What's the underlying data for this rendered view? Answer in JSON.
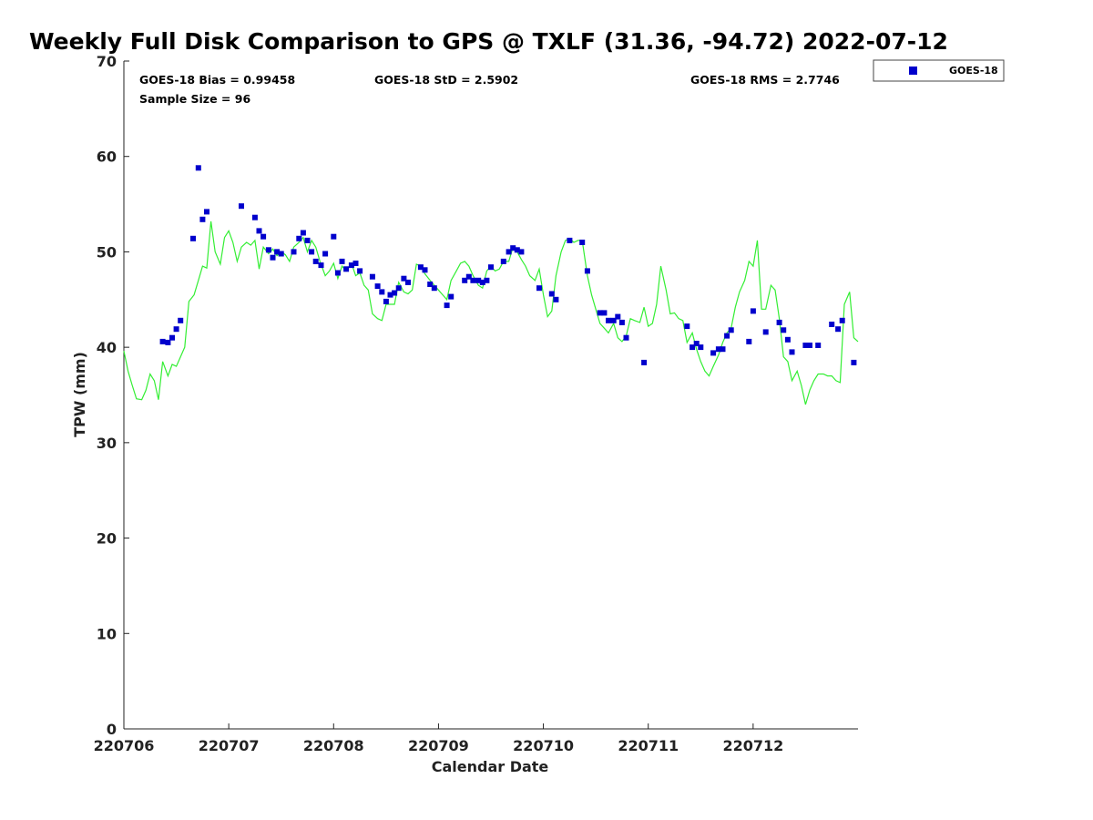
{
  "chart_data": {
    "type": "scatter",
    "title": "Weekly Full Disk Comparison to GPS @ TXLF (31.36, -94.72) 2022-07-12",
    "xlabel": "Calendar Date",
    "ylabel": "TPW (mm)",
    "xlim": [
      220706,
      220713
    ],
    "ylim": [
      0,
      70
    ],
    "x_ticks": [
      220706,
      220707,
      220708,
      220709,
      220710,
      220711,
      220712
    ],
    "x_tick_labels": [
      "220706",
      "220707",
      "220708",
      "220709",
      "220710",
      "220711",
      "220712"
    ],
    "y_ticks": [
      0,
      10,
      20,
      30,
      40,
      50,
      60,
      70
    ],
    "y_tick_labels": [
      "0",
      "10",
      "20",
      "30",
      "40",
      "50",
      "60",
      "70"
    ],
    "grid": false,
    "legend": {
      "placement": "outside-top-right",
      "entries": [
        "GOES-18"
      ]
    },
    "stats": {
      "bias": "GOES-18 Bias = 0.99458",
      "std": "GOES-18 StD = 2.5902",
      "rms": "GOES-18 RMS = 2.7746",
      "sample": "Sample Size = 96"
    },
    "series": [
      {
        "name": "GOES-18",
        "marker": "square",
        "color": "#0000cc",
        "points": [
          [
            220706.37,
            40.6
          ],
          [
            220706.42,
            40.5
          ],
          [
            220706.46,
            41.0
          ],
          [
            220706.5,
            41.9
          ],
          [
            220706.54,
            42.8
          ],
          [
            220706.66,
            51.4
          ],
          [
            220706.71,
            58.8
          ],
          [
            220706.75,
            53.4
          ],
          [
            220706.79,
            54.2
          ],
          [
            220707.12,
            54.8
          ],
          [
            220707.25,
            53.6
          ],
          [
            220707.29,
            52.2
          ],
          [
            220707.33,
            51.6
          ],
          [
            220707.38,
            50.2
          ],
          [
            220707.42,
            49.4
          ],
          [
            220707.46,
            50.0
          ],
          [
            220707.5,
            49.8
          ],
          [
            220707.62,
            50.0
          ],
          [
            220707.67,
            51.4
          ],
          [
            220707.71,
            52.0
          ],
          [
            220707.75,
            51.2
          ],
          [
            220707.79,
            50.0
          ],
          [
            220707.83,
            49.0
          ],
          [
            220707.88,
            48.6
          ],
          [
            220707.92,
            49.8
          ],
          [
            220708.0,
            51.6
          ],
          [
            220708.04,
            47.8
          ],
          [
            220708.08,
            49.0
          ],
          [
            220708.12,
            48.2
          ],
          [
            220708.17,
            48.6
          ],
          [
            220708.21,
            48.8
          ],
          [
            220708.25,
            48.0
          ],
          [
            220708.37,
            47.4
          ],
          [
            220708.42,
            46.4
          ],
          [
            220708.46,
            45.8
          ],
          [
            220708.5,
            44.8
          ],
          [
            220708.54,
            45.5
          ],
          [
            220708.58,
            45.7
          ],
          [
            220708.62,
            46.2
          ],
          [
            220708.67,
            47.2
          ],
          [
            220708.71,
            46.8
          ],
          [
            220708.83,
            48.4
          ],
          [
            220708.87,
            48.1
          ],
          [
            220708.92,
            46.6
          ],
          [
            220708.96,
            46.2
          ],
          [
            220709.08,
            44.4
          ],
          [
            220709.12,
            45.3
          ],
          [
            220709.25,
            47.0
          ],
          [
            220709.29,
            47.4
          ],
          [
            220709.33,
            47.0
          ],
          [
            220709.38,
            47.0
          ],
          [
            220709.42,
            46.8
          ],
          [
            220709.46,
            47.0
          ],
          [
            220709.5,
            48.4
          ],
          [
            220709.62,
            49.0
          ],
          [
            220709.67,
            50.0
          ],
          [
            220709.71,
            50.4
          ],
          [
            220709.75,
            50.2
          ],
          [
            220709.79,
            50.0
          ],
          [
            220709.96,
            46.2
          ],
          [
            220710.08,
            45.6
          ],
          [
            220710.12,
            45.0
          ],
          [
            220710.25,
            51.2
          ],
          [
            220710.37,
            51.0
          ],
          [
            220710.42,
            48.0
          ],
          [
            220710.54,
            43.6
          ],
          [
            220710.58,
            43.6
          ],
          [
            220710.62,
            42.8
          ],
          [
            220710.67,
            42.8
          ],
          [
            220710.71,
            43.2
          ],
          [
            220710.75,
            42.6
          ],
          [
            220710.79,
            41.0
          ],
          [
            220710.96,
            38.4
          ],
          [
            220711.37,
            42.2
          ],
          [
            220711.42,
            40.0
          ],
          [
            220711.46,
            40.4
          ],
          [
            220711.5,
            40.0
          ],
          [
            220711.62,
            39.4
          ],
          [
            220711.67,
            39.8
          ],
          [
            220711.71,
            39.8
          ],
          [
            220711.75,
            41.2
          ],
          [
            220711.79,
            41.8
          ],
          [
            220711.96,
            40.6
          ],
          [
            220712.0,
            43.8
          ],
          [
            220712.12,
            41.6
          ],
          [
            220712.25,
            42.6
          ],
          [
            220712.29,
            41.8
          ],
          [
            220712.33,
            40.8
          ],
          [
            220712.37,
            39.5
          ],
          [
            220712.5,
            40.2
          ],
          [
            220712.54,
            40.2
          ],
          [
            220712.62,
            40.2
          ],
          [
            220712.75,
            42.4
          ],
          [
            220712.81,
            41.9
          ],
          [
            220712.85,
            42.8
          ],
          [
            220712.96,
            38.4
          ]
        ]
      },
      {
        "name": "",
        "marker": "line",
        "color": "#33ee33",
        "points": [
          [
            220706.0,
            39.6
          ],
          [
            220706.04,
            37.5
          ],
          [
            220706.08,
            36.0
          ],
          [
            220706.12,
            34.6
          ],
          [
            220706.17,
            34.5
          ],
          [
            220706.21,
            35.5
          ],
          [
            220706.25,
            37.2
          ],
          [
            220706.29,
            36.5
          ],
          [
            220706.33,
            34.5
          ],
          [
            220706.37,
            38.5
          ],
          [
            220706.42,
            37.0
          ],
          [
            220706.46,
            38.2
          ],
          [
            220706.5,
            38.0
          ],
          [
            220706.54,
            39.0
          ],
          [
            220706.58,
            40.0
          ],
          [
            220706.62,
            44.8
          ],
          [
            220706.67,
            45.5
          ],
          [
            220706.71,
            47.0
          ],
          [
            220706.75,
            48.5
          ],
          [
            220706.79,
            48.3
          ],
          [
            220706.83,
            53.2
          ],
          [
            220706.87,
            50.0
          ],
          [
            220706.92,
            48.7
          ],
          [
            220706.96,
            51.5
          ],
          [
            220707.0,
            52.2
          ],
          [
            220707.04,
            51.0
          ],
          [
            220707.08,
            49.0
          ],
          [
            220707.12,
            50.5
          ],
          [
            220707.17,
            51.0
          ],
          [
            220707.21,
            50.7
          ],
          [
            220707.25,
            51.2
          ],
          [
            220707.29,
            48.2
          ],
          [
            220707.33,
            50.5
          ],
          [
            220707.38,
            49.8
          ],
          [
            220707.42,
            50.3
          ],
          [
            220707.46,
            49.6
          ],
          [
            220707.5,
            50.0
          ],
          [
            220707.54,
            49.7
          ],
          [
            220707.58,
            49.0
          ],
          [
            220707.62,
            50.5
          ],
          [
            220707.67,
            51.0
          ],
          [
            220707.71,
            51.5
          ],
          [
            220707.75,
            50.0
          ],
          [
            220707.79,
            51.2
          ],
          [
            220707.83,
            50.5
          ],
          [
            220707.87,
            49.0
          ],
          [
            220707.92,
            47.5
          ],
          [
            220707.96,
            48.0
          ],
          [
            220708.0,
            48.8
          ],
          [
            220708.04,
            47.2
          ],
          [
            220708.08,
            48.5
          ],
          [
            220708.12,
            48.0
          ],
          [
            220708.17,
            48.8
          ],
          [
            220708.21,
            47.5
          ],
          [
            220708.25,
            47.8
          ],
          [
            220708.29,
            46.5
          ],
          [
            220708.33,
            46.0
          ],
          [
            220708.37,
            43.5
          ],
          [
            220708.42,
            43.0
          ],
          [
            220708.46,
            42.8
          ],
          [
            220708.5,
            44.5
          ],
          [
            220708.54,
            44.5
          ],
          [
            220708.58,
            44.5
          ],
          [
            220708.62,
            46.8
          ],
          [
            220708.67,
            45.8
          ],
          [
            220708.71,
            45.6
          ],
          [
            220708.75,
            46.0
          ],
          [
            220708.79,
            48.7
          ],
          [
            220708.83,
            48.5
          ],
          [
            220708.87,
            47.7
          ],
          [
            220708.92,
            47.0
          ],
          [
            220708.96,
            46.5
          ],
          [
            220709.0,
            46.0
          ],
          [
            220709.04,
            45.5
          ],
          [
            220709.08,
            45.0
          ],
          [
            220709.12,
            47.0
          ],
          [
            220709.17,
            48.0
          ],
          [
            220709.21,
            48.8
          ],
          [
            220709.25,
            49.0
          ],
          [
            220709.29,
            48.5
          ],
          [
            220709.33,
            47.5
          ],
          [
            220709.38,
            46.5
          ],
          [
            220709.42,
            46.2
          ],
          [
            220709.46,
            48.0
          ],
          [
            220709.5,
            48.5
          ],
          [
            220709.54,
            48.0
          ],
          [
            220709.58,
            48.2
          ],
          [
            220709.62,
            49.0
          ],
          [
            220709.67,
            49.0
          ],
          [
            220709.71,
            50.5
          ],
          [
            220709.75,
            50.0
          ],
          [
            220709.79,
            49.2
          ],
          [
            220709.83,
            48.5
          ],
          [
            220709.87,
            47.5
          ],
          [
            220709.92,
            47.0
          ],
          [
            220709.96,
            48.2
          ],
          [
            220710.0,
            45.5
          ],
          [
            220710.04,
            43.2
          ],
          [
            220710.08,
            43.8
          ],
          [
            220710.12,
            47.5
          ],
          [
            220710.17,
            50.0
          ],
          [
            220710.21,
            51.2
          ],
          [
            220710.25,
            51.4
          ],
          [
            220710.29,
            51.0
          ],
          [
            220710.33,
            51.2
          ],
          [
            220710.37,
            51.2
          ],
          [
            220710.42,
            47.5
          ],
          [
            220710.46,
            45.5
          ],
          [
            220710.5,
            44.0
          ],
          [
            220710.54,
            42.5
          ],
          [
            220710.58,
            42.0
          ],
          [
            220710.62,
            41.5
          ],
          [
            220710.67,
            42.5
          ],
          [
            220710.71,
            41.0
          ],
          [
            220710.75,
            40.6
          ],
          [
            220710.79,
            41.2
          ],
          [
            220710.83,
            43.0
          ],
          [
            220710.87,
            42.8
          ],
          [
            220710.92,
            42.6
          ],
          [
            220710.96,
            44.2
          ],
          [
            220711.0,
            42.2
          ],
          [
            220711.04,
            42.5
          ],
          [
            220711.08,
            44.5
          ],
          [
            220711.12,
            48.5
          ],
          [
            220711.17,
            46.0
          ],
          [
            220711.21,
            43.5
          ],
          [
            220711.25,
            43.6
          ],
          [
            220711.29,
            43.0
          ],
          [
            220711.33,
            42.8
          ],
          [
            220711.37,
            40.5
          ],
          [
            220711.42,
            41.5
          ],
          [
            220711.46,
            39.8
          ],
          [
            220711.5,
            38.5
          ],
          [
            220711.54,
            37.5
          ],
          [
            220711.58,
            37.0
          ],
          [
            220711.62,
            38.0
          ],
          [
            220711.67,
            39.2
          ],
          [
            220711.71,
            40.5
          ],
          [
            220711.75,
            41.5
          ],
          [
            220711.79,
            42.0
          ],
          [
            220711.83,
            44.2
          ],
          [
            220711.87,
            45.8
          ],
          [
            220711.92,
            47.0
          ],
          [
            220711.96,
            49.0
          ],
          [
            220712.0,
            48.5
          ],
          [
            220712.04,
            51.2
          ],
          [
            220712.08,
            44.0
          ],
          [
            220712.12,
            44.0
          ],
          [
            220712.17,
            46.5
          ],
          [
            220712.21,
            46.0
          ],
          [
            220712.25,
            43.0
          ],
          [
            220712.29,
            39.0
          ],
          [
            220712.33,
            38.5
          ],
          [
            220712.37,
            36.5
          ],
          [
            220712.42,
            37.5
          ],
          [
            220712.46,
            36.0
          ],
          [
            220712.5,
            34.0
          ],
          [
            220712.54,
            35.5
          ],
          [
            220712.58,
            36.5
          ],
          [
            220712.62,
            37.2
          ],
          [
            220712.67,
            37.2
          ],
          [
            220712.71,
            37.0
          ],
          [
            220712.75,
            37.0
          ],
          [
            220712.79,
            36.5
          ],
          [
            220712.83,
            36.3
          ],
          [
            220712.87,
            44.5
          ],
          [
            220712.92,
            45.8
          ],
          [
            220712.96,
            41.0
          ],
          [
            220713.0,
            40.6
          ]
        ]
      }
    ]
  }
}
